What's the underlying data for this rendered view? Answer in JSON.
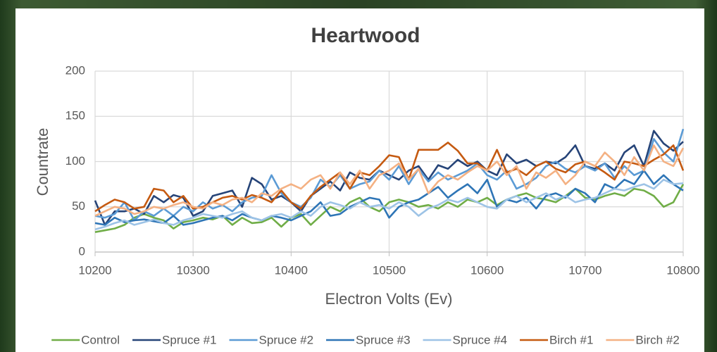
{
  "chart_data": {
    "type": "line",
    "title": "Heartwood",
    "x_label": "Electron Volts (Ev)",
    "y_label": "Countrate",
    "x": [
      10200,
      10210,
      10220,
      10230,
      10240,
      10250,
      10260,
      10270,
      10280,
      10290,
      10300,
      10310,
      10320,
      10330,
      10340,
      10350,
      10360,
      10370,
      10380,
      10390,
      10400,
      10410,
      10420,
      10430,
      10440,
      10450,
      10460,
      10470,
      10480,
      10490,
      10500,
      10510,
      10520,
      10530,
      10540,
      10550,
      10560,
      10570,
      10580,
      10590,
      10600,
      10610,
      10620,
      10630,
      10640,
      10650,
      10660,
      10670,
      10680,
      10690,
      10700,
      10710,
      10720,
      10730,
      10740,
      10750,
      10760,
      10770,
      10780,
      10790,
      10800
    ],
    "xlim": [
      10200,
      10800
    ],
    "xticks": [
      10200,
      10300,
      10400,
      10500,
      10600,
      10700,
      10800
    ],
    "ylim": [
      0,
      200
    ],
    "yticks": [
      0,
      50,
      100,
      150,
      200
    ],
    "grid": true,
    "legend": "bottom",
    "series": [
      {
        "name": "Control",
        "color": "#70ad47",
        "values": [
          22,
          24,
          26,
          30,
          38,
          42,
          38,
          35,
          26,
          33,
          35,
          38,
          36,
          40,
          30,
          38,
          32,
          33,
          38,
          28,
          38,
          42,
          30,
          40,
          50,
          45,
          55,
          60,
          50,
          45,
          55,
          58,
          55,
          50,
          52,
          48,
          55,
          50,
          58,
          55,
          60,
          52,
          58,
          62,
          65,
          60,
          58,
          55,
          62,
          70,
          60,
          58,
          62,
          65,
          62,
          70,
          68,
          62,
          50,
          55,
          75
        ]
      },
      {
        "name": "Spruce #1",
        "color": "#264478",
        "values": [
          57,
          30,
          45,
          45,
          48,
          42,
          62,
          55,
          63,
          60,
          40,
          45,
          62,
          65,
          68,
          50,
          82,
          75,
          58,
          62,
          55,
          45,
          62,
          70,
          78,
          68,
          88,
          82,
          80,
          90,
          85,
          80,
          90,
          95,
          80,
          96,
          92,
          102,
          95,
          100,
          90,
          85,
          108,
          98,
          102,
          95,
          100,
          98,
          105,
          118,
          95,
          92,
          98,
          90,
          110,
          118,
          95,
          134,
          120,
          112,
          122
        ]
      },
      {
        "name": "Spruce #2",
        "color": "#5b9bd5",
        "values": [
          40,
          38,
          42,
          55,
          35,
          45,
          40,
          48,
          40,
          50,
          45,
          55,
          48,
          52,
          45,
          55,
          60,
          62,
          85,
          65,
          55,
          50,
          60,
          80,
          72,
          85,
          70,
          75,
          78,
          90,
          80,
          95,
          75,
          92,
          78,
          88,
          80,
          85,
          90,
          98,
          85,
          80,
          90,
          70,
          75,
          82,
          95,
          100,
          92,
          88,
          95,
          90,
          98,
          82,
          95,
          85,
          90,
          125,
          110,
          100,
          136
        ]
      },
      {
        "name": "Spruce #3",
        "color": "#2e75b6",
        "values": [
          32,
          30,
          38,
          33,
          35,
          36,
          34,
          32,
          40,
          30,
          32,
          35,
          38,
          40,
          35,
          42,
          38,
          35,
          40,
          38,
          35,
          40,
          45,
          55,
          40,
          42,
          50,
          55,
          60,
          58,
          38,
          50,
          55,
          58,
          65,
          72,
          60,
          68,
          75,
          65,
          80,
          50,
          58,
          55,
          60,
          48,
          62,
          65,
          60,
          70,
          65,
          55,
          75,
          70,
          80,
          75,
          90,
          75,
          85,
          75,
          68
        ]
      },
      {
        "name": "Spruce #4",
        "color": "#9dc3e6",
        "values": [
          25,
          28,
          32,
          35,
          30,
          33,
          36,
          32,
          30,
          35,
          38,
          42,
          40,
          38,
          42,
          45,
          38,
          35,
          40,
          42,
          38,
          45,
          40,
          50,
          55,
          52,
          48,
          55,
          50,
          52,
          48,
          55,
          50,
          40,
          48,
          52,
          58,
          55,
          60,
          55,
          50,
          48,
          58,
          62,
          55,
          60,
          65,
          58,
          62,
          55,
          58,
          60,
          65,
          70,
          68,
          72,
          75,
          70,
          80,
          75,
          76
        ]
      },
      {
        "name": "Birch #1",
        "color": "#c55a11",
        "values": [
          45,
          52,
          58,
          55,
          48,
          50,
          70,
          68,
          55,
          62,
          48,
          50,
          55,
          60,
          62,
          58,
          63,
          60,
          55,
          68,
          55,
          48,
          62,
          72,
          80,
          88,
          70,
          88,
          85,
          95,
          107,
          105,
          80,
          113,
          113,
          113,
          121,
          112,
          98,
          98,
          90,
          113,
          88,
          92,
          85,
          95,
          100,
          92,
          88,
          97,
          100,
          95,
          88,
          80,
          100,
          98,
          95,
          102,
          108,
          118,
          90
        ]
      },
      {
        "name": "Birch #2",
        "color": "#f4b183",
        "values": [
          40,
          45,
          50,
          48,
          42,
          45,
          50,
          48,
          52,
          55,
          50,
          48,
          55,
          52,
          58,
          60,
          55,
          65,
          62,
          70,
          75,
          70,
          80,
          85,
          70,
          88,
          75,
          90,
          70,
          85,
          90,
          98,
          80,
          92,
          65,
          78,
          85,
          80,
          88,
          95,
          90,
          100,
          85,
          95,
          70,
          88,
          82,
          90,
          75,
          85,
          100,
          95,
          110,
          100,
          85,
          105,
          90,
          118,
          100,
          95,
          115
        ]
      }
    ]
  }
}
